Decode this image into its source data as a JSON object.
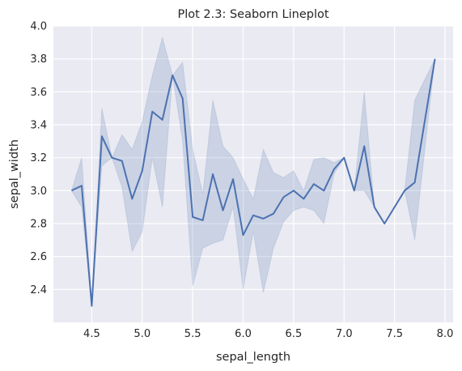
{
  "chart_data": {
    "type": "line",
    "title": "Plot 2.3: Seaborn Lineplot",
    "xlabel": "sepal_length",
    "ylabel": "sepal_width",
    "xlim": [
      4.12,
      8.08
    ],
    "ylim": [
      2.2,
      4.0
    ],
    "x_ticks": [
      4.5,
      5.0,
      5.5,
      6.0,
      6.5,
      7.0,
      7.5,
      8.0
    ],
    "x_tick_labels": [
      "4.5",
      "5.0",
      "5.5",
      "6.0",
      "6.5",
      "7.0",
      "7.5",
      "8.0"
    ],
    "y_ticks": [
      2.4,
      2.6,
      2.8,
      3.0,
      3.2,
      3.4,
      3.6,
      3.8,
      4.0
    ],
    "y_tick_labels": [
      "2.4",
      "2.6",
      "2.8",
      "3.0",
      "3.2",
      "3.4",
      "3.6",
      "3.8",
      "4.0"
    ],
    "grid": true,
    "line_color": "#4c72b0",
    "band_color": "#4c72b0",
    "background_color": "#eaeaf2",
    "series": [
      {
        "x": [
          4.3,
          4.4,
          4.5,
          4.6,
          4.7,
          4.8,
          4.9,
          5.0,
          5.1,
          5.2,
          5.3,
          5.4,
          5.5,
          5.6,
          5.7,
          5.8,
          5.9,
          6.0,
          6.1,
          6.2,
          6.3,
          6.4,
          6.5,
          6.6,
          6.7,
          6.8,
          6.9,
          7.0,
          7.1,
          7.2,
          7.3,
          7.4,
          7.6,
          7.7,
          7.9
        ],
        "y": [
          3.0,
          3.03,
          2.3,
          3.33,
          3.2,
          3.18,
          2.95,
          3.12,
          3.48,
          3.43,
          3.7,
          3.56,
          2.84,
          2.82,
          3.1,
          2.88,
          3.07,
          2.73,
          2.85,
          2.83,
          2.86,
          2.96,
          3.0,
          2.95,
          3.04,
          3.0,
          3.13,
          3.2,
          3.0,
          3.27,
          2.9,
          2.8,
          3.0,
          3.05,
          3.8
        ],
        "lower": [
          3.0,
          2.9,
          2.3,
          3.15,
          3.2,
          3.02,
          2.63,
          2.75,
          3.2,
          2.9,
          3.7,
          3.3,
          2.42,
          2.65,
          2.68,
          2.7,
          2.9,
          2.4,
          2.75,
          2.38,
          2.65,
          2.81,
          2.88,
          2.9,
          2.88,
          2.8,
          3.1,
          3.2,
          3.0,
          3.0,
          2.9,
          2.8,
          3.0,
          2.7,
          3.8
        ],
        "upper": [
          3.0,
          3.2,
          2.3,
          3.5,
          3.2,
          3.34,
          3.25,
          3.42,
          3.7,
          3.93,
          3.7,
          3.78,
          3.25,
          2.98,
          3.55,
          3.27,
          3.2,
          3.07,
          2.95,
          3.25,
          3.11,
          3.08,
          3.12,
          3.0,
          3.19,
          3.2,
          3.17,
          3.2,
          3.0,
          3.6,
          2.9,
          2.8,
          3.0,
          3.55,
          3.8
        ]
      }
    ]
  }
}
